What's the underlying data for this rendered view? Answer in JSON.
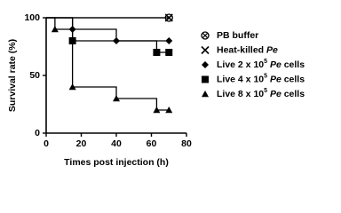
{
  "chart_data": {
    "type": "survival",
    "x_label": "Times post injection (h)",
    "y_label": "Survival rate (%)",
    "xlim": [
      0,
      80
    ],
    "xticks": [
      0,
      20,
      40,
      60,
      80
    ],
    "ylim": [
      0,
      100
    ],
    "yticks": [
      0,
      50,
      100
    ],
    "series": [
      {
        "name": [
          {
            "text": "PB buffer"
          }
        ],
        "marker": "circle-cross",
        "color": "#000000",
        "x": [
          0,
          70
        ],
        "values": [
          100,
          100
        ]
      },
      {
        "name": [
          {
            "text": "Heat-killed "
          },
          {
            "text": "Pe",
            "style": "italic"
          }
        ],
        "marker": "x",
        "color": "#000000",
        "x": [
          0,
          70
        ],
        "values": [
          100,
          100
        ]
      },
      {
        "name": [
          {
            "text": "Live 2 x 10"
          },
          {
            "text": "5",
            "style": "sup"
          },
          {
            "text": " Pe",
            "style": "italic"
          },
          {
            "text": " cells"
          }
        ],
        "marker": "diamond",
        "color": "#000000",
        "x": [
          0,
          15,
          40,
          70
        ],
        "values": [
          100,
          90,
          80,
          80
        ]
      },
      {
        "name": [
          {
            "text": "Live 4 x 10"
          },
          {
            "text": "5",
            "style": "sup"
          },
          {
            "text": " Pe",
            "style": "italic"
          },
          {
            "text": " cells"
          }
        ],
        "marker": "square",
        "color": "#000000",
        "x": [
          0,
          15,
          63,
          70
        ],
        "values": [
          100,
          80,
          70,
          70
        ]
      },
      {
        "name": [
          {
            "text": "Live 8 x 10"
          },
          {
            "text": "5",
            "style": "sup"
          },
          {
            "text": " Pe",
            "style": "italic"
          },
          {
            "text": " cells"
          }
        ],
        "marker": "triangle",
        "color": "#000000",
        "x": [
          0,
          5,
          15,
          40,
          63,
          70
        ],
        "values": [
          100,
          90,
          40,
          30,
          20,
          20
        ]
      }
    ]
  }
}
